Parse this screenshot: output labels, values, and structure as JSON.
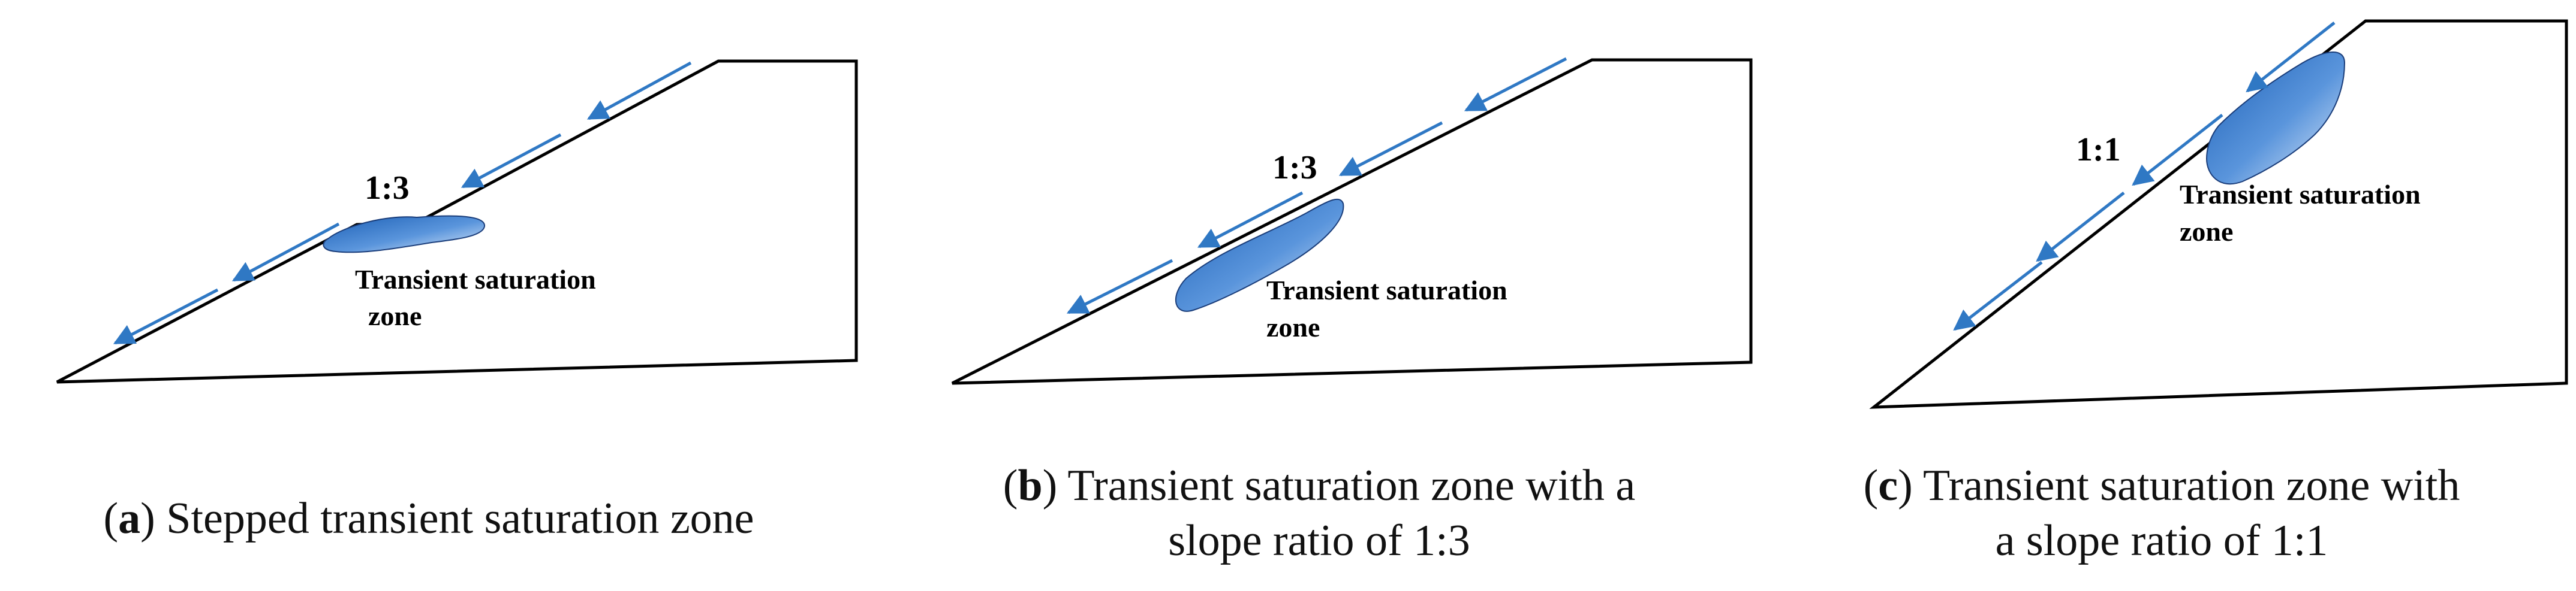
{
  "panels": [
    {
      "id": "a",
      "ratio_label": "1:3",
      "zone_label_line1": "Transient saturation",
      "zone_label_line2": "zone",
      "caption_letter": "a",
      "caption_line1": "Stepped transient saturation zone",
      "caption_line2": ""
    },
    {
      "id": "b",
      "ratio_label": "1:3",
      "zone_label_line1": "Transient saturation",
      "zone_label_line2": "zone",
      "caption_letter": "b",
      "caption_line1": "Transient saturation zone with a",
      "caption_line2": "slope ratio of 1:3"
    },
    {
      "id": "c",
      "ratio_label": "1:1",
      "zone_label_line1": "Transient saturation",
      "zone_label_line2": "zone",
      "caption_letter": "c",
      "caption_line1": "Transient saturation zone with",
      "caption_line2": "a slope ratio of 1:1"
    }
  ],
  "colors": {
    "outline": "#000000",
    "arrow": "#2f78c4",
    "zone_dark": "#1f63b8",
    "zone_light": "#dfeafa"
  }
}
